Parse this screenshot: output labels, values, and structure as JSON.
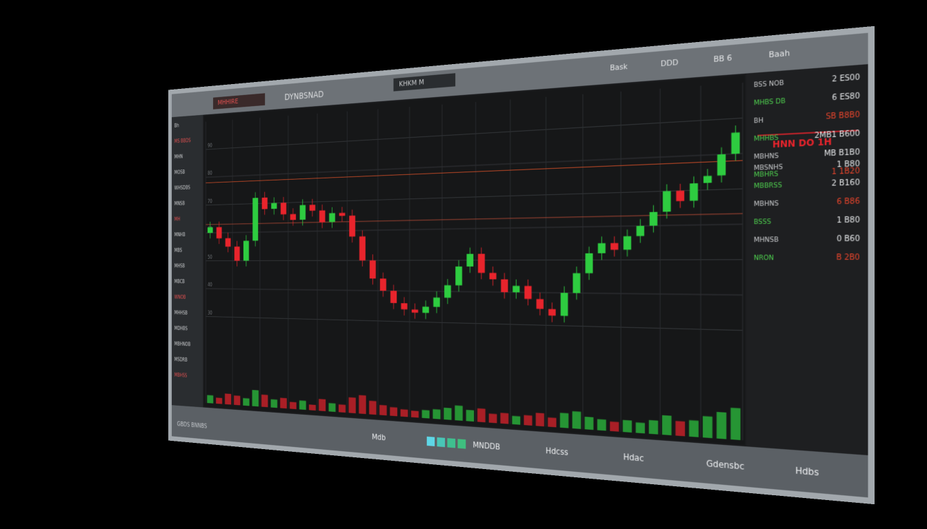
{
  "header": {
    "title": "DYNBSNAD",
    "left_tag": "MHHIRE",
    "tab": "KHKM M",
    "items": [
      "Bask",
      "DDD",
      "BB 6",
      "Baah"
    ]
  },
  "sidebar": {
    "items": [
      "Bh",
      "MS BBDS",
      "MHN",
      "MOSB",
      "WHSDBS",
      "MNSB",
      "MH",
      "MNHB",
      "MBS",
      "MHSB",
      "MBCB",
      "WNOB",
      "MHHSB",
      "MDHBS",
      "MBHNOB",
      "MSDRB",
      "MBHSS"
    ]
  },
  "chart_data": {
    "type": "candlestick",
    "open": [
      60,
      62,
      58,
      55,
      50,
      57,
      72,
      68,
      70,
      66,
      64,
      69,
      67,
      63,
      66,
      65,
      58,
      50,
      44,
      40,
      36,
      34,
      33,
      35,
      38,
      42,
      48,
      52,
      46,
      44,
      40,
      42,
      38,
      35,
      33,
      40,
      46,
      52,
      55,
      53,
      57,
      60,
      64,
      70,
      67,
      72,
      74,
      80
    ],
    "high": [
      64,
      64,
      60,
      57,
      59,
      74,
      74,
      72,
      72,
      68,
      71,
      71,
      69,
      68,
      68,
      67,
      60,
      52,
      46,
      42,
      38,
      36,
      37,
      40,
      44,
      50,
      54,
      54,
      48,
      46,
      44,
      44,
      40,
      37,
      42,
      48,
      54,
      57,
      57,
      59,
      62,
      66,
      72,
      72,
      74,
      76,
      82,
      88
    ],
    "low": [
      58,
      56,
      53,
      48,
      48,
      55,
      66,
      66,
      64,
      62,
      62,
      65,
      61,
      61,
      63,
      56,
      48,
      42,
      38,
      34,
      32,
      31,
      31,
      33,
      36,
      40,
      46,
      44,
      42,
      38,
      38,
      36,
      33,
      31,
      31,
      38,
      44,
      50,
      51,
      51,
      55,
      58,
      62,
      65,
      65,
      70,
      72,
      78
    ],
    "close": [
      62,
      58,
      55,
      50,
      57,
      72,
      68,
      70,
      66,
      64,
      69,
      67,
      63,
      66,
      65,
      58,
      50,
      44,
      40,
      36,
      34,
      33,
      35,
      38,
      42,
      48,
      52,
      46,
      44,
      40,
      42,
      38,
      35,
      33,
      40,
      46,
      52,
      55,
      53,
      57,
      60,
      64,
      70,
      67,
      72,
      74,
      80,
      86
    ],
    "volume": [
      60,
      45,
      80,
      70,
      55,
      120,
      90,
      60,
      75,
      50,
      65,
      40,
      85,
      60,
      55,
      110,
      130,
      95,
      70,
      60,
      50,
      45,
      55,
      65,
      80,
      100,
      75,
      90,
      60,
      70,
      55,
      65,
      85,
      60,
      95,
      110,
      80,
      70,
      60,
      75,
      65,
      85,
      120,
      90,
      100,
      130,
      160,
      190
    ],
    "up_color": "#2ecc40",
    "down_color": "#e8242c",
    "ylim": [
      20,
      100
    ],
    "yticks": [
      30,
      40,
      50,
      60,
      70,
      80,
      90
    ],
    "y2lim": [
      0,
      400
    ],
    "levels": [
      {
        "value": 78,
        "color": "#e8552a"
      },
      {
        "value": 63,
        "color": "#c8503a"
      }
    ],
    "grid": true
  },
  "panel": {
    "rows": [
      {
        "label": "BSS NOB",
        "value": "2 ES00"
      },
      {
        "label": "MHBS DB",
        "value": "6 ES80"
      },
      {
        "label": "BH",
        "value": "SB B8B0"
      },
      {
        "label": "MHHBS",
        "value": "2MB1 B600"
      },
      {
        "label": "MBHNS",
        "value": "MB B1B0"
      },
      {
        "label": "MBHRS",
        "value": "1 1B20"
      }
    ],
    "heading": "HNN DO 1H",
    "rows2": [
      {
        "label": "MBSNHS",
        "value": "1 B80"
      },
      {
        "label": "MBBRSS",
        "value": "2 B160"
      },
      {
        "label": "MBHNS",
        "value": "6 B86"
      },
      {
        "label": "BSSS",
        "value": "1 B80"
      },
      {
        "label": "MHNSB",
        "value": "0 B60"
      },
      {
        "label": "NRON",
        "value": "B 2B0"
      }
    ]
  },
  "footer": {
    "items": [
      "Mdb",
      "MNDDB",
      "Hdcss",
      "Hdac",
      "Gdensbc",
      "Hdbs"
    ],
    "status": "GBDS BNNBS"
  }
}
